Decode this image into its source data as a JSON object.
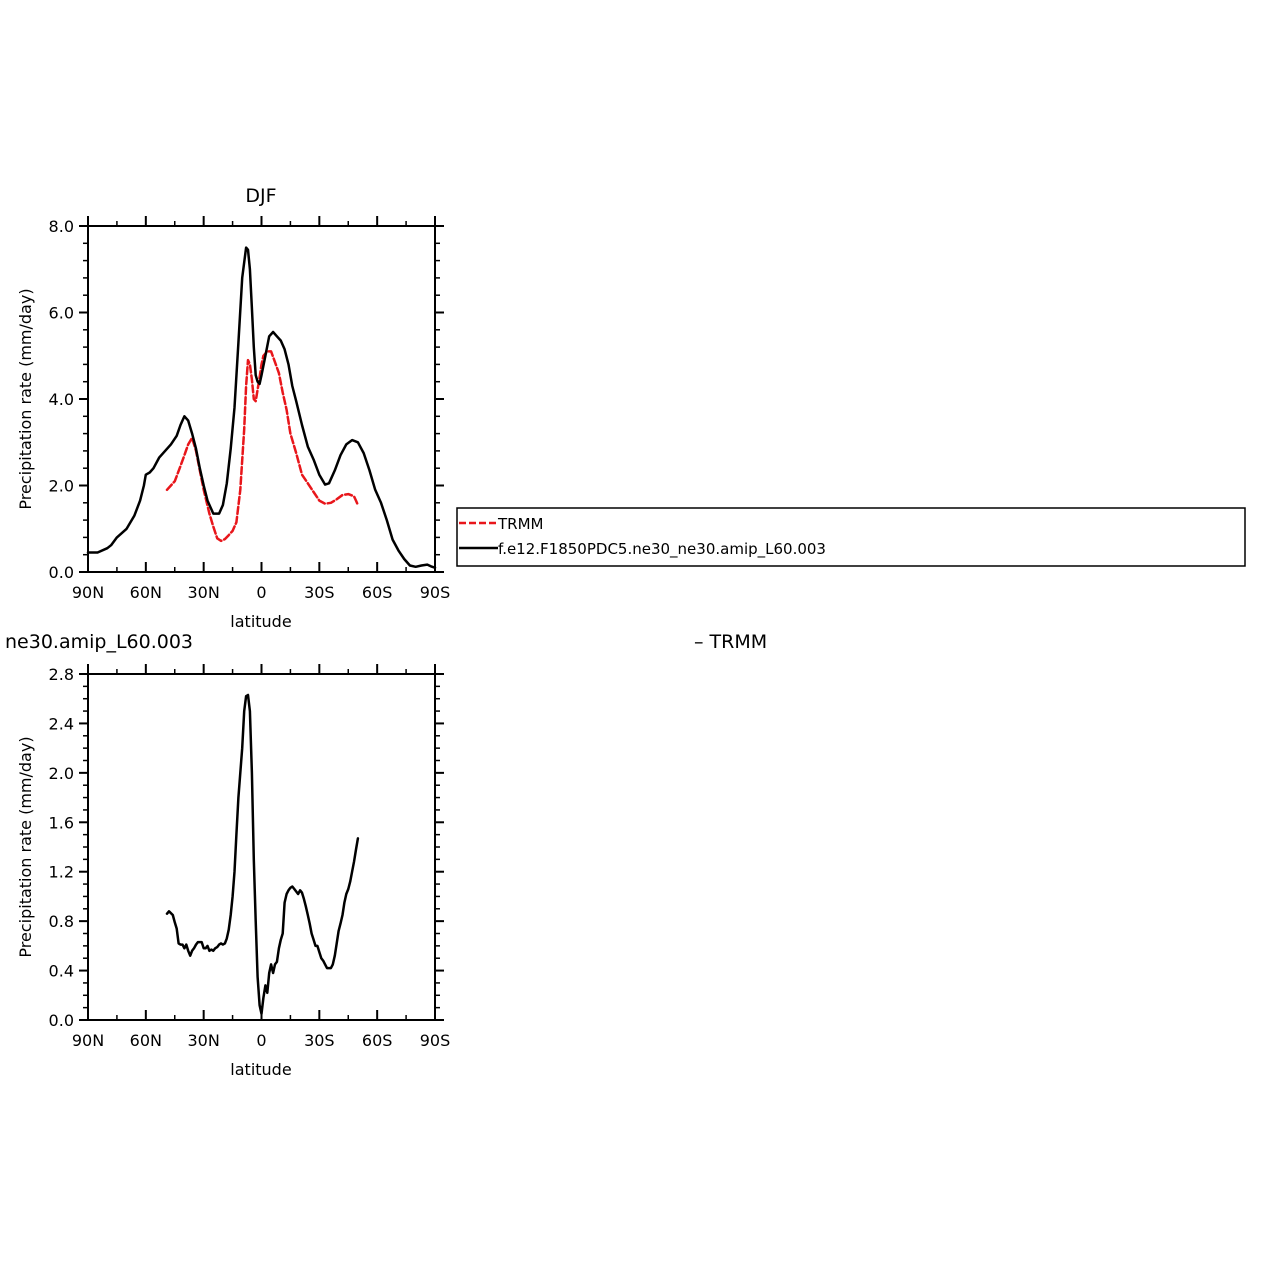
{
  "chart_data": [
    {
      "type": "line",
      "title": "DJF",
      "xlabel": "latitude",
      "ylabel": "Precipitation rate (mm/day)",
      "xlim": [
        90,
        -90
      ],
      "ylim": [
        0,
        8
      ],
      "x_ticks": [
        90,
        60,
        30,
        0,
        -30,
        -60,
        -90
      ],
      "x_tick_labels": [
        "90N",
        "60N",
        "30N",
        "0",
        "30S",
        "60S",
        "90S"
      ],
      "y_ticks": [
        0,
        2,
        4,
        6,
        8
      ],
      "y_tick_labels": [
        "0.0",
        "2.0",
        "4.0",
        "6.0",
        "8.0"
      ],
      "grid": false,
      "legend": {
        "placement": "right, outside plot",
        "entries": [
          "TRMM",
          "f.e12.F1850PDC5.ne30_ne30.amip_L60.003"
        ]
      },
      "series": [
        {
          "name": "TRMM",
          "color": "#e8161b",
          "style": "dashed",
          "x": [
            49,
            45,
            42,
            40,
            38,
            36,
            34,
            32,
            30,
            27,
            25,
            23,
            21,
            19,
            17,
            15,
            13,
            11,
            9,
            8,
            7,
            6,
            5,
            4,
            3,
            1,
            0,
            -1,
            -3,
            -5,
            -7,
            -9,
            -11,
            -13,
            -15,
            -18,
            -21,
            -24,
            -27,
            -30,
            -33,
            -36,
            -39,
            -42,
            -45,
            -48,
            -49,
            -50
          ],
          "y": [
            1.9,
            2.1,
            2.45,
            2.7,
            2.95,
            3.1,
            2.8,
            2.35,
            1.9,
            1.35,
            1.05,
            0.78,
            0.72,
            0.76,
            0.85,
            0.95,
            1.15,
            1.9,
            3.3,
            4.3,
            4.9,
            4.8,
            4.45,
            4.0,
            3.95,
            4.5,
            4.8,
            5.0,
            5.1,
            5.1,
            4.85,
            4.6,
            4.15,
            3.75,
            3.2,
            2.75,
            2.25,
            2.05,
            1.85,
            1.65,
            1.58,
            1.6,
            1.68,
            1.78,
            1.8,
            1.75,
            1.65,
            1.55
          ]
        },
        {
          "name": "f.e12.F1850PDC5.ne30_ne30.amip_L60.003",
          "color": "#000000",
          "style": "solid",
          "x": [
            90,
            85,
            80,
            78,
            75,
            70,
            66,
            63,
            61,
            60,
            58,
            56,
            53,
            50,
            47,
            44,
            42,
            40,
            38,
            36,
            34,
            32,
            30,
            28,
            25,
            22,
            20,
            18,
            16,
            14,
            12,
            10,
            8,
            7,
            6,
            5,
            4,
            3,
            2,
            1,
            0,
            -2,
            -4,
            -6,
            -8,
            -10,
            -12,
            -14,
            -16,
            -18,
            -21,
            -24,
            -27,
            -30,
            -33,
            -35,
            -38,
            -41,
            -44,
            -47,
            -50,
            -53,
            -56,
            -59,
            -62,
            -65,
            -68,
            -71,
            -74,
            -77,
            -80,
            -83,
            -86,
            -88,
            -90
          ],
          "y": [
            0.45,
            0.45,
            0.55,
            0.62,
            0.8,
            1.0,
            1.3,
            1.65,
            2.0,
            2.25,
            2.3,
            2.4,
            2.65,
            2.8,
            2.95,
            3.15,
            3.4,
            3.6,
            3.5,
            3.2,
            2.85,
            2.4,
            2.0,
            1.65,
            1.35,
            1.35,
            1.55,
            2.05,
            2.85,
            3.8,
            5.3,
            6.8,
            7.5,
            7.45,
            7.0,
            6.1,
            5.2,
            4.55,
            4.4,
            4.35,
            4.55,
            5.0,
            5.45,
            5.55,
            5.45,
            5.35,
            5.15,
            4.8,
            4.3,
            3.95,
            3.4,
            2.9,
            2.6,
            2.25,
            2.02,
            2.05,
            2.35,
            2.7,
            2.95,
            3.05,
            3.0,
            2.75,
            2.35,
            1.9,
            1.6,
            1.2,
            0.75,
            0.5,
            0.3,
            0.15,
            0.12,
            0.15,
            0.17,
            0.13,
            0.1
          ]
        }
      ]
    },
    {
      "type": "line",
      "title": "ne30.amip_L60.003",
      "title_right": "– TRMM",
      "xlabel": "latitude",
      "ylabel": "Precipitation rate (mm/day)",
      "xlim": [
        90,
        -90
      ],
      "ylim": [
        0,
        2.8
      ],
      "x_ticks": [
        90,
        60,
        30,
        0,
        -30,
        -60,
        -90
      ],
      "x_tick_labels": [
        "90N",
        "60N",
        "30N",
        "0",
        "30S",
        "60S",
        "90S"
      ],
      "y_ticks": [
        0,
        0.4,
        0.8,
        1.2,
        1.6,
        2.0,
        2.4,
        2.8
      ],
      "y_tick_labels": [
        "0.0",
        "0.4",
        "0.8",
        "1.2",
        "1.6",
        "2.0",
        "2.4",
        "2.8"
      ],
      "grid": false,
      "series": [
        {
          "color": "#000000",
          "style": "solid",
          "x": [
            49,
            48,
            46,
            45,
            44,
            43,
            42,
            41,
            40,
            39,
            38,
            37,
            36,
            35,
            34,
            33,
            32,
            31,
            30,
            29,
            28,
            27,
            26,
            25,
            24,
            23,
            22,
            21,
            20,
            19,
            18,
            17,
            16,
            15,
            14,
            13,
            12,
            11,
            10,
            9,
            8,
            7,
            6,
            5,
            4,
            3,
            2,
            1,
            0,
            -1,
            -2,
            -3,
            -4,
            -5,
            -6,
            -7,
            -8,
            -9,
            -10,
            -11,
            -12,
            -13,
            -14,
            -15,
            -16,
            -17,
            -18,
            -19,
            -20,
            -21,
            -22,
            -23,
            -24,
            -25,
            -26,
            -27,
            -28,
            -29,
            -30,
            -31,
            -32,
            -33,
            -34,
            -35,
            -36,
            -37,
            -38,
            -39,
            -40,
            -41,
            -42,
            -43,
            -44,
            -45,
            -46,
            -47,
            -48,
            -49,
            -50
          ],
          "y": [
            0.86,
            0.88,
            0.85,
            0.79,
            0.74,
            0.62,
            0.61,
            0.61,
            0.58,
            0.61,
            0.56,
            0.52,
            0.56,
            0.58,
            0.61,
            0.63,
            0.63,
            0.63,
            0.58,
            0.58,
            0.6,
            0.56,
            0.57,
            0.56,
            0.58,
            0.59,
            0.61,
            0.62,
            0.61,
            0.62,
            0.66,
            0.73,
            0.85,
            1.0,
            1.2,
            1.5,
            1.8,
            2.0,
            2.2,
            2.5,
            2.62,
            2.63,
            2.5,
            2.0,
            1.3,
            0.8,
            0.35,
            0.12,
            0.05,
            0.18,
            0.28,
            0.22,
            0.38,
            0.45,
            0.38,
            0.45,
            0.47,
            0.58,
            0.65,
            0.7,
            0.95,
            1.02,
            1.05,
            1.07,
            1.08,
            1.06,
            1.04,
            1.02,
            1.05,
            1.03,
            0.98,
            0.92,
            0.85,
            0.78,
            0.7,
            0.65,
            0.6,
            0.6,
            0.55,
            0.5,
            0.48,
            0.45,
            0.42,
            0.42,
            0.42,
            0.45,
            0.52,
            0.62,
            0.72,
            0.78,
            0.85,
            0.95,
            1.02,
            1.06,
            1.12,
            1.2,
            1.28,
            1.38,
            1.47
          ]
        }
      ]
    }
  ]
}
